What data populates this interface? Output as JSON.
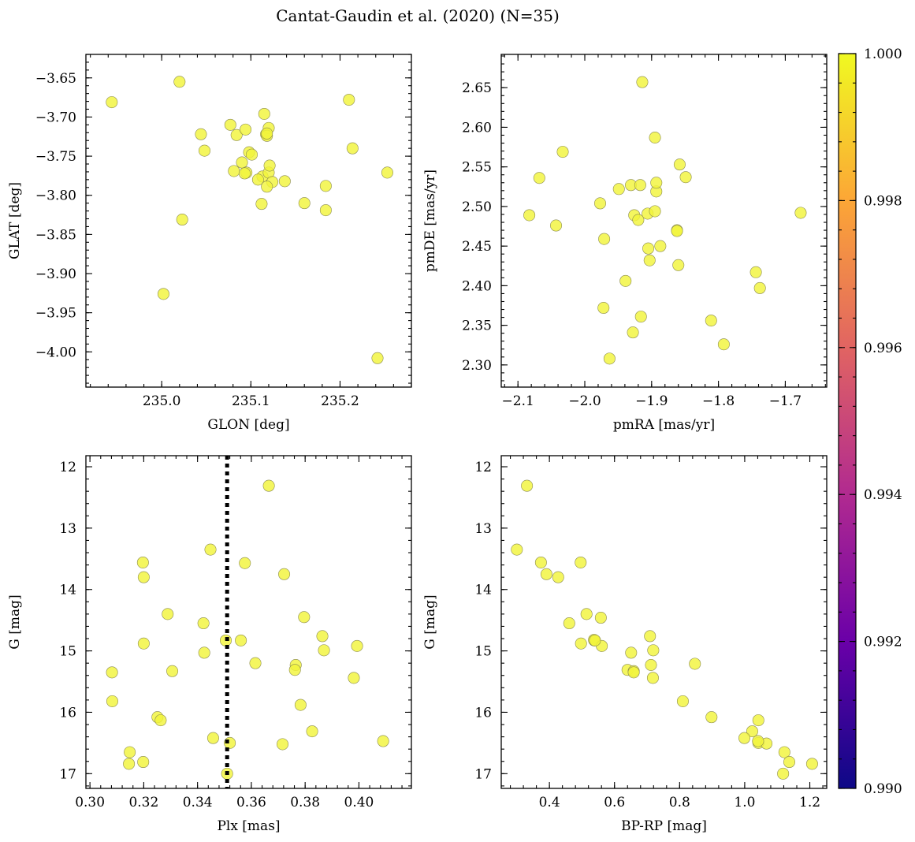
{
  "figure_title": "Cantat-Gaudin et al. (2020) (N=35)",
  "marker_color": "#f2f43c",
  "colorbar": {
    "min": 0.99,
    "max": 1.0,
    "ticks": [
      0.99,
      0.992,
      0.994,
      0.996,
      0.998,
      1.0
    ],
    "tick_labels": [
      "0.990",
      "0.992",
      "0.994",
      "0.996",
      "0.998",
      "1.000"
    ],
    "colormap": [
      "#0d0887",
      "#6a00a8",
      "#b12a90",
      "#e16462",
      "#fca636",
      "#f0f921"
    ]
  },
  "chart_data": [
    {
      "id": "sky",
      "type": "scatter",
      "xlabel": "GLON [deg]",
      "ylabel": "GLAT [deg]",
      "xlim": [
        234.915,
        235.28
      ],
      "ylim": [
        -4.045,
        -3.62
      ],
      "y_inverted": false,
      "xticks": [
        235.0,
        235.1,
        235.2
      ],
      "xtick_labels": [
        "235.0",
        "235.1",
        "235.2"
      ],
      "yticks": [
        -4.0,
        -3.95,
        -3.9,
        -3.85,
        -3.8,
        -3.75,
        -3.7,
        -3.65
      ],
      "ytick_labels": [
        "−4.00",
        "−3.95",
        "−3.90",
        "−3.85",
        "−3.80",
        "−3.75",
        "−3.70",
        "−3.65"
      ],
      "x": [
        234.944,
        235.02,
        235.044,
        235.048,
        235.023,
        235.002,
        235.077,
        235.084,
        235.094,
        235.098,
        235.101,
        235.115,
        235.117,
        235.12,
        235.113,
        235.118,
        235.081,
        235.09,
        235.095,
        235.093,
        235.108,
        235.12,
        235.121,
        235.124,
        235.118,
        235.112,
        235.138,
        235.16,
        235.184,
        235.184,
        235.21,
        235.214,
        235.253,
        235.242,
        235.118
      ],
      "y": [
        -3.681,
        -3.655,
        -3.722,
        -3.743,
        -3.831,
        -3.926,
        -3.71,
        -3.723,
        -3.716,
        -3.745,
        -3.748,
        -3.696,
        -3.722,
        -3.714,
        -3.776,
        -3.724,
        -3.769,
        -3.758,
        -3.771,
        -3.772,
        -3.78,
        -3.771,
        -3.762,
        -3.783,
        -3.789,
        -3.811,
        -3.782,
        -3.81,
        -3.788,
        -3.819,
        -3.678,
        -3.74,
        -3.771,
        -4.008,
        -3.721
      ]
    },
    {
      "id": "pm",
      "type": "scatter",
      "xlabel": "pmRA [mas/yr]",
      "ylabel": "pmDE [mas/yr]",
      "xlim": [
        -2.125,
        -1.638
      ],
      "ylim": [
        2.272,
        2.692
      ],
      "y_inverted": false,
      "xticks": [
        -2.1,
        -2.0,
        -1.9,
        -1.8,
        -1.7
      ],
      "xtick_labels": [
        "−2.1",
        "−2.0",
        "−1.9",
        "−1.8",
        "−1.7"
      ],
      "yticks": [
        2.3,
        2.35,
        2.4,
        2.45,
        2.5,
        2.55,
        2.6,
        2.65
      ],
      "ytick_labels": [
        "2.30",
        "2.35",
        "2.40",
        "2.45",
        "2.50",
        "2.55",
        "2.60",
        "2.65"
      ],
      "x": [
        -2.083,
        -2.068,
        -2.033,
        -2.043,
        -1.977,
        -1.971,
        -1.972,
        -1.949,
        -1.939,
        -1.931,
        -1.926,
        -1.917,
        -1.92,
        -1.916,
        -1.906,
        -1.903,
        -1.905,
        -1.895,
        -1.893,
        -1.893,
        -1.895,
        -1.887,
        -1.862,
        -1.858,
        -1.849,
        -1.86,
        -1.963,
        -1.928,
        -1.914,
        -1.811,
        -1.792,
        -1.744,
        -1.738,
        -1.677,
        -1.862
      ],
      "y": [
        2.489,
        2.536,
        2.569,
        2.476,
        2.504,
        2.459,
        2.372,
        2.522,
        2.406,
        2.527,
        2.489,
        2.527,
        2.483,
        2.361,
        2.491,
        2.432,
        2.447,
        2.494,
        2.519,
        2.53,
        2.587,
        2.45,
        2.47,
        2.553,
        2.537,
        2.426,
        2.308,
        2.341,
        2.657,
        2.356,
        2.326,
        2.417,
        2.397,
        2.492,
        2.469
      ]
    },
    {
      "id": "plx",
      "type": "scatter",
      "xlabel": "Plx [mas]",
      "ylabel": "G [mag]",
      "xlim": [
        0.2985,
        0.4195
      ],
      "ylim": [
        11.82,
        17.24
      ],
      "y_inverted": true,
      "xticks": [
        0.3,
        0.32,
        0.34,
        0.36,
        0.38,
        0.4
      ],
      "xtick_labels": [
        "0.30",
        "0.32",
        "0.34",
        "0.36",
        "0.38",
        "0.40"
      ],
      "yticks": [
        12,
        13,
        14,
        15,
        16,
        17
      ],
      "ytick_labels": [
        "12",
        "13",
        "14",
        "15",
        "16",
        "17"
      ],
      "vline": 0.351,
      "x": [
        0.3665,
        0.3448,
        0.3197,
        0.3576,
        0.32,
        0.3722,
        0.3289,
        0.3422,
        0.3796,
        0.32,
        0.3505,
        0.3561,
        0.3864,
        0.3993,
        0.3425,
        0.3615,
        0.3765,
        0.3306,
        0.3762,
        0.3082,
        0.3981,
        0.3783,
        0.3083,
        0.3251,
        0.3263,
        0.3826,
        0.3458,
        0.352,
        0.3716,
        0.409,
        0.3148,
        0.3198,
        0.3145,
        0.351,
        0.387
      ],
      "y": [
        12.31,
        13.35,
        13.56,
        13.57,
        13.8,
        13.75,
        14.4,
        14.55,
        14.45,
        14.88,
        14.83,
        14.83,
        14.76,
        14.92,
        15.03,
        15.2,
        15.23,
        15.33,
        15.31,
        15.35,
        15.44,
        15.88,
        15.82,
        16.08,
        16.13,
        16.31,
        16.42,
        16.5,
        16.52,
        16.47,
        16.65,
        16.81,
        16.84,
        17.0,
        14.99
      ]
    },
    {
      "id": "cmd",
      "type": "scatter",
      "xlabel": "BP-RP [mag]",
      "ylabel": "G [mag]",
      "xlim": [
        0.252,
        1.252
      ],
      "ylim": [
        11.82,
        17.24
      ],
      "y_inverted": true,
      "xticks": [
        0.4,
        0.6,
        0.8,
        1.0,
        1.2
      ],
      "xtick_labels": [
        "0.4",
        "0.6",
        "0.8",
        "1.0",
        "1.2"
      ],
      "yticks": [
        12,
        13,
        14,
        15,
        16,
        17
      ],
      "ytick_labels": [
        "12",
        "13",
        "14",
        "15",
        "16",
        "17"
      ],
      "x": [
        0.331,
        0.3,
        0.374,
        0.391,
        0.427,
        0.496,
        0.514,
        0.558,
        0.461,
        0.497,
        0.538,
        0.537,
        0.709,
        0.561,
        0.651,
        0.719,
        0.712,
        0.64,
        0.659,
        0.659,
        0.718,
        0.847,
        0.81,
        0.898,
        1.042,
        1.023,
        0.999,
        1.042,
        1.067,
        1.041,
        1.122,
        1.137,
        1.207,
        1.118,
        0.54
      ],
      "y": [
        12.31,
        13.35,
        13.56,
        13.75,
        13.8,
        13.56,
        14.4,
        14.46,
        14.55,
        14.88,
        14.83,
        14.82,
        14.76,
        14.92,
        15.03,
        14.99,
        15.23,
        15.31,
        15.33,
        15.35,
        15.44,
        15.21,
        15.82,
        16.08,
        16.13,
        16.31,
        16.42,
        16.5,
        16.51,
        16.47,
        16.65,
        16.81,
        16.84,
        17.0,
        14.83
      ]
    }
  ]
}
